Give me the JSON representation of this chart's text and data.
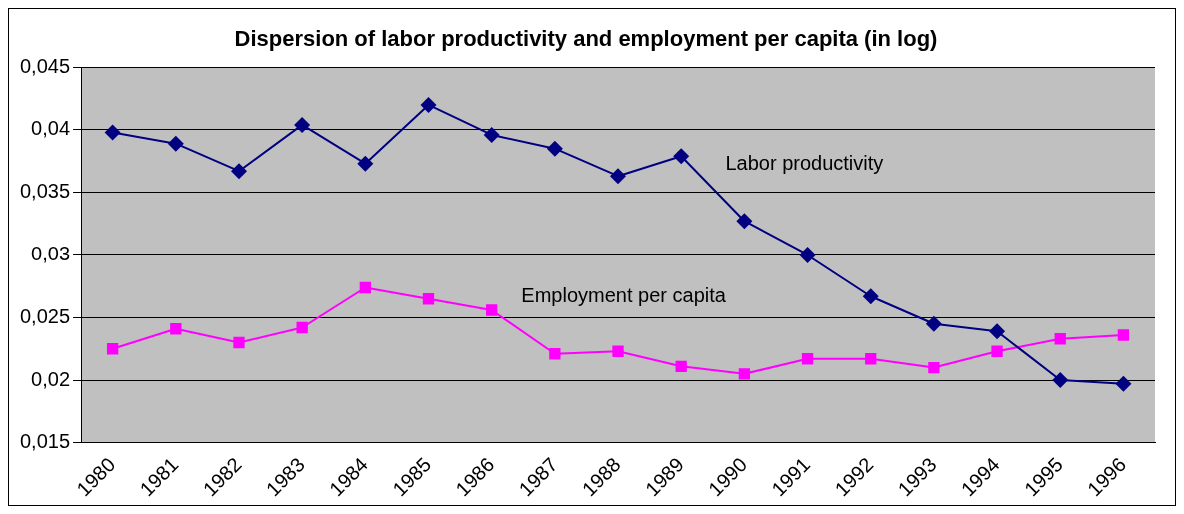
{
  "chart_data": {
    "type": "line",
    "title": "Dispersion of labor productivity and employment per capita (in log)",
    "categories": [
      "1980",
      "1981",
      "1982",
      "1983",
      "1984",
      "1985",
      "1986",
      "1987",
      "1988",
      "1989",
      "1990",
      "1991",
      "1992",
      "1993",
      "1994",
      "1995",
      "1996"
    ],
    "series": [
      {
        "name": "Labor productivity",
        "color": "#000080",
        "marker": "diamond",
        "values": [
          0.0398,
          0.0389,
          0.0367,
          0.0404,
          0.0373,
          0.042,
          0.0396,
          0.0385,
          0.0363,
          0.0379,
          0.0327,
          0.03,
          0.0267,
          0.0245,
          0.0239,
          0.02,
          0.0197
        ]
      },
      {
        "name": "Employment per capita",
        "color": "#ff00ff",
        "marker": "square",
        "values": [
          0.0225,
          0.0241,
          0.023,
          0.0242,
          0.0274,
          0.0265,
          0.0256,
          0.0221,
          0.0223,
          0.0211,
          0.0205,
          0.0217,
          0.0217,
          0.021,
          0.0223,
          0.0233,
          0.0236
        ]
      }
    ],
    "ylim": [
      0.015,
      0.045
    ],
    "yticks": [
      {
        "value": 0.015,
        "label": "0,015"
      },
      {
        "value": 0.02,
        "label": "0,02"
      },
      {
        "value": 0.025,
        "label": "0,025"
      },
      {
        "value": 0.03,
        "label": "0,03"
      },
      {
        "value": 0.035,
        "label": "0,035"
      },
      {
        "value": 0.04,
        "label": "0,04"
      },
      {
        "value": 0.045,
        "label": "0,045"
      }
    ],
    "grid": "y",
    "legend": false
  }
}
